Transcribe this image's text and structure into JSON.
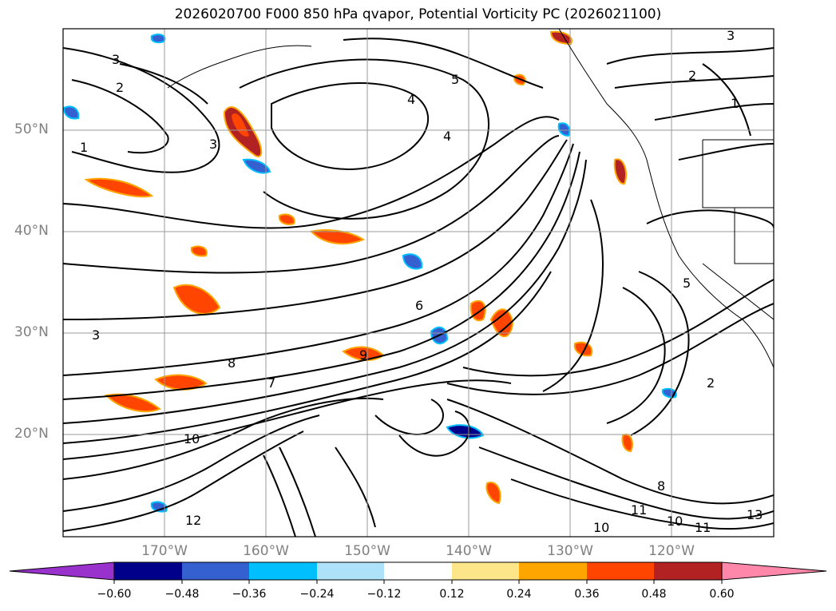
{
  "title": "2026020700 F000 850 hPa qvapor, Potential Vorticity PC (2026021100)",
  "map": {
    "lat_labels": [
      "50°N",
      "40°N",
      "30°N",
      "20°N"
    ],
    "lat_values": [
      50,
      40,
      30,
      20
    ],
    "lon_labels": [
      "170°W",
      "160°W",
      "150°W",
      "140°W",
      "130°W",
      "120°W"
    ],
    "lon_values": [
      -170,
      -160,
      -150,
      -140,
      -130,
      -120
    ],
    "extent": {
      "lon_min": -180,
      "lon_max": -110,
      "lat_min": 10,
      "lat_max": 60
    },
    "contour_labels": [
      "3",
      "2",
      "1",
      "4",
      "3",
      "5",
      "2",
      "4",
      "3",
      "6",
      "7",
      "8",
      "9",
      "10",
      "8",
      "11",
      "12",
      "10",
      "10",
      "11",
      "13",
      "2",
      "5",
      "1",
      "3"
    ],
    "grid": true,
    "coastlines": true
  },
  "colorbar": {
    "tick_labels": [
      "−0.60",
      "−0.48",
      "−0.36",
      "−0.24",
      "−0.12",
      "0.12",
      "0.24",
      "0.36",
      "0.48",
      "0.60"
    ],
    "colors": [
      "#9932cc",
      "#00008b",
      "#3560d0",
      "#00bfff",
      "#aee2fa",
      "#ffffff",
      "#fde68a",
      "#ffa500",
      "#ff4500",
      "#b22222",
      "#ff88aa"
    ],
    "extend": "both"
  }
}
